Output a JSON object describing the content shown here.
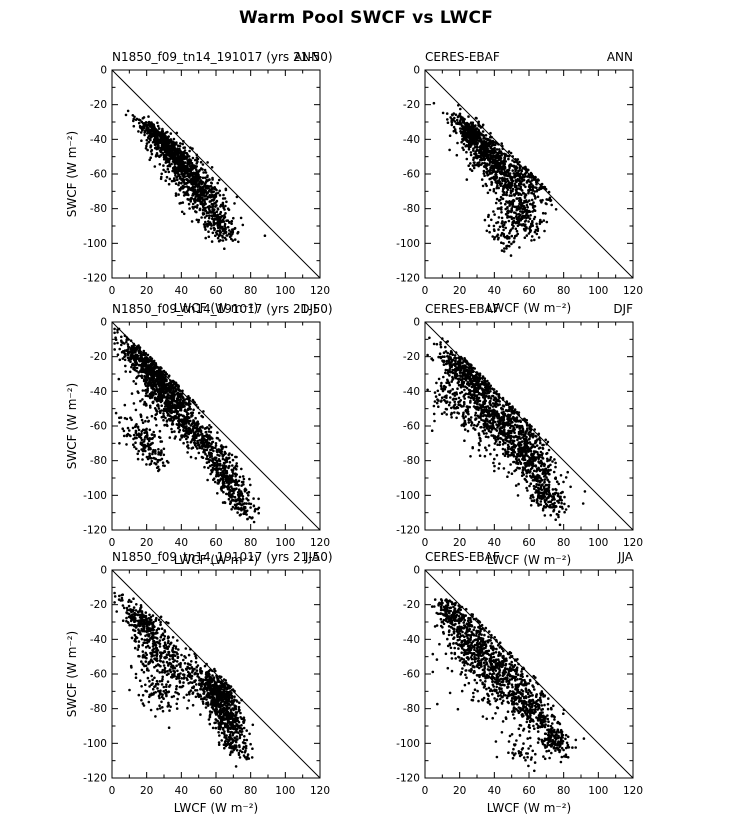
{
  "figure": {
    "title": "Warm Pool SWCF vs LWCF"
  },
  "chart_data": [
    {
      "type": "scatter",
      "panel": "model-ann",
      "title": "N1850_f09_tn14_191017 (yrs 21-50)",
      "season": "ANN",
      "xlabel": "LWCF (W m⁻²)",
      "ylabel": "SWCF (W m⁻²)",
      "xlim": [
        0,
        120
      ],
      "ylim": [
        0,
        -120
      ],
      "xticks": [
        0,
        20,
        40,
        60,
        80,
        100,
        120
      ],
      "yticks": [
        0,
        -20,
        -40,
        -60,
        -80,
        -100,
        -120
      ],
      "reference_line": {
        "from": [
          0,
          0
        ],
        "to": [
          120,
          -120
        ]
      },
      "marker": {
        "shape": "dot",
        "color": "#000000"
      },
      "seed": 101,
      "clusters": [
        {
          "cx": 30,
          "cy": -42,
          "along": 9,
          "across": 2.5,
          "n": 450
        },
        {
          "cx": 40,
          "cy": -55,
          "along": 10,
          "across": 4,
          "n": 350
        },
        {
          "cx": 50,
          "cy": -70,
          "along": 9,
          "across": 5,
          "n": 280
        },
        {
          "cx": 60,
          "cy": -88,
          "along": 7,
          "across": 4,
          "n": 180
        },
        {
          "cx": 47,
          "cy": -62,
          "along": 16,
          "across": 6,
          "n": 120
        }
      ]
    },
    {
      "type": "scatter",
      "panel": "obs-ann",
      "title": "CERES-EBAF",
      "season": "ANN",
      "xlabel": "LWCF (W m⁻²)",
      "ylabel": "",
      "xlim": [
        0,
        120
      ],
      "ylim": [
        0,
        -120
      ],
      "xticks": [
        0,
        20,
        40,
        60,
        80,
        100,
        120
      ],
      "yticks": [
        0,
        -20,
        -40,
        -60,
        -80,
        -100,
        -120
      ],
      "reference_line": {
        "from": [
          0,
          0
        ],
        "to": [
          120,
          -120
        ]
      },
      "marker": {
        "shape": "dot",
        "color": "#000000"
      },
      "seed": 102,
      "clusters": [
        {
          "cx": 28,
          "cy": -38,
          "along": 8,
          "across": 3,
          "n": 400
        },
        {
          "cx": 38,
          "cy": -52,
          "along": 10,
          "across": 5,
          "n": 380
        },
        {
          "cx": 50,
          "cy": -68,
          "along": 10,
          "across": 6,
          "n": 280
        },
        {
          "cx": 55,
          "cy": -85,
          "along": 8,
          "across": 5,
          "n": 180
        },
        {
          "cx": 60,
          "cy": -60,
          "along": 8,
          "across": 5,
          "n": 100
        },
        {
          "cx": 45,
          "cy": -95,
          "along": 6,
          "across": 4,
          "n": 60
        }
      ]
    },
    {
      "type": "scatter",
      "panel": "model-djf",
      "title": "N1850_f09_tn14_191017 (yrs 21-50)",
      "season": "DJF",
      "xlabel": "LWCF (W m⁻²)",
      "ylabel": "SWCF (W m⁻²)",
      "xlim": [
        0,
        120
      ],
      "ylim": [
        0,
        -120
      ],
      "xticks": [
        0,
        20,
        40,
        60,
        80,
        100,
        120
      ],
      "yticks": [
        0,
        -20,
        -40,
        -60,
        -80,
        -100,
        -120
      ],
      "reference_line": {
        "from": [
          0,
          0
        ],
        "to": [
          120,
          -120
        ]
      },
      "marker": {
        "shape": "dot",
        "color": "#000000"
      },
      "seed": 103,
      "clusters": [
        {
          "cx": 22,
          "cy": -27,
          "along": 13,
          "across": 2.5,
          "n": 420
        },
        {
          "cx": 28,
          "cy": -38,
          "along": 13,
          "across": 4,
          "n": 350
        },
        {
          "cx": 35,
          "cy": -50,
          "along": 12,
          "across": 6,
          "n": 300
        },
        {
          "cx": 52,
          "cy": -68,
          "along": 12,
          "across": 4,
          "n": 300
        },
        {
          "cx": 66,
          "cy": -90,
          "along": 9,
          "across": 3.5,
          "n": 220
        },
        {
          "cx": 74,
          "cy": -105,
          "along": 6,
          "across": 3,
          "n": 100
        },
        {
          "cx": 17,
          "cy": -65,
          "along": 7,
          "across": 4,
          "n": 110
        },
        {
          "cx": 24,
          "cy": -78,
          "along": 5,
          "across": 3,
          "n": 60
        }
      ]
    },
    {
      "type": "scatter",
      "panel": "obs-djf",
      "title": "CERES-EBAF",
      "season": "DJF",
      "xlabel": "LWCF (W m⁻²)",
      "ylabel": "",
      "xlim": [
        0,
        120
      ],
      "ylim": [
        0,
        -120
      ],
      "xticks": [
        0,
        20,
        40,
        60,
        80,
        100,
        120
      ],
      "yticks": [
        0,
        -20,
        -40,
        -60,
        -80,
        -100,
        -120
      ],
      "reference_line": {
        "from": [
          0,
          0
        ],
        "to": [
          120,
          -120
        ]
      },
      "marker": {
        "shape": "dot",
        "color": "#000000"
      },
      "seed": 104,
      "clusters": [
        {
          "cx": 22,
          "cy": -28,
          "along": 10,
          "across": 3.5,
          "n": 300
        },
        {
          "cx": 35,
          "cy": -48,
          "along": 13,
          "across": 7,
          "n": 400
        },
        {
          "cx": 50,
          "cy": -62,
          "along": 12,
          "across": 7,
          "n": 320
        },
        {
          "cx": 62,
          "cy": -82,
          "along": 10,
          "across": 5,
          "n": 280
        },
        {
          "cx": 70,
          "cy": -100,
          "along": 7,
          "across": 4,
          "n": 160
        },
        {
          "cx": 14,
          "cy": -45,
          "along": 6,
          "across": 5,
          "n": 70
        },
        {
          "cx": 40,
          "cy": -65,
          "along": 18,
          "across": 10,
          "n": 100
        }
      ]
    },
    {
      "type": "scatter",
      "panel": "model-jja",
      "title": "N1850_f09_tn14_191017 (yrs 21-50)",
      "season": "JJA",
      "xlabel": "LWCF (W m⁻²)",
      "ylabel": "SWCF (W m⁻²)",
      "xlim": [
        0,
        120
      ],
      "ylim": [
        0,
        -120
      ],
      "xticks": [
        0,
        20,
        40,
        60,
        80,
        100,
        120
      ],
      "yticks": [
        0,
        -20,
        -40,
        -60,
        -80,
        -100,
        -120
      ],
      "reference_line": {
        "from": [
          0,
          0
        ],
        "to": [
          120,
          -120
        ]
      },
      "marker": {
        "shape": "dot",
        "color": "#000000"
      },
      "seed": 105,
      "clusters": [
        {
          "cx": 18,
          "cy": -30,
          "along": 8,
          "across": 3.5,
          "n": 220
        },
        {
          "cx": 25,
          "cy": -45,
          "along": 9,
          "across": 6,
          "n": 180
        },
        {
          "cx": 38,
          "cy": -58,
          "along": 10,
          "across": 7,
          "n": 160
        },
        {
          "cx": 60,
          "cy": -70,
          "along": 8,
          "across": 4,
          "n": 450
        },
        {
          "cx": 66,
          "cy": -85,
          "along": 7,
          "across": 3.5,
          "n": 280
        },
        {
          "cx": 70,
          "cy": -100,
          "along": 5,
          "across": 3,
          "n": 110
        },
        {
          "cx": 26,
          "cy": -70,
          "along": 8,
          "across": 5,
          "n": 90
        }
      ]
    },
    {
      "type": "scatter",
      "panel": "obs-jja",
      "title": "CERES-EBAF",
      "season": "JJA",
      "xlabel": "LWCF (W m⁻²)",
      "ylabel": "",
      "xlim": [
        0,
        120
      ],
      "ylim": [
        0,
        -120
      ],
      "xticks": [
        0,
        20,
        40,
        60,
        80,
        100,
        120
      ],
      "yticks": [
        0,
        -20,
        -40,
        -60,
        -80,
        -100,
        -120
      ],
      "reference_line": {
        "from": [
          0,
          0
        ],
        "to": [
          120,
          -120
        ]
      },
      "marker": {
        "shape": "dot",
        "color": "#000000"
      },
      "seed": 106,
      "clusters": [
        {
          "cx": 16,
          "cy": -26,
          "along": 6,
          "across": 3.5,
          "n": 180
        },
        {
          "cx": 28,
          "cy": -42,
          "along": 9,
          "across": 6,
          "n": 280
        },
        {
          "cx": 42,
          "cy": -58,
          "along": 11,
          "across": 7,
          "n": 330
        },
        {
          "cx": 60,
          "cy": -78,
          "along": 10,
          "across": 5,
          "n": 300
        },
        {
          "cx": 74,
          "cy": -98,
          "along": 6,
          "across": 3.5,
          "n": 150
        },
        {
          "cx": 38,
          "cy": -68,
          "along": 16,
          "across": 10,
          "n": 120
        },
        {
          "cx": 55,
          "cy": -105,
          "along": 6,
          "across": 4,
          "n": 40
        }
      ]
    }
  ]
}
